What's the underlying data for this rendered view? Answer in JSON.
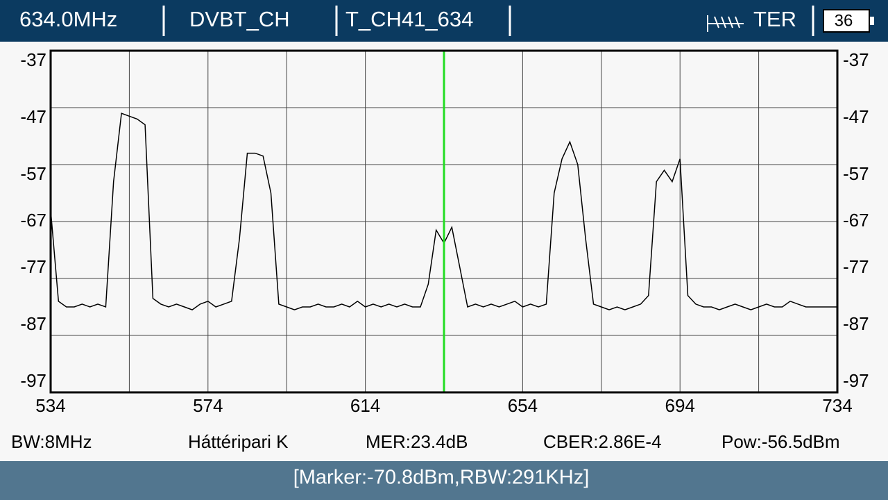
{
  "header": {
    "frequency": "634.0MHz",
    "mode": "DVBT_CH",
    "channel": "T_CH41_634",
    "band": "TER",
    "battery": "36"
  },
  "chart_data": {
    "type": "line",
    "x": [
      534,
      536,
      538,
      540,
      542,
      544,
      546,
      548,
      550,
      552,
      554,
      556,
      558,
      560,
      562,
      564,
      566,
      568,
      570,
      572,
      574,
      576,
      578,
      580,
      582,
      584,
      586,
      588,
      590,
      592,
      594,
      596,
      598,
      600,
      602,
      604,
      606,
      608,
      610,
      612,
      614,
      616,
      618,
      620,
      622,
      624,
      626,
      628,
      630,
      632,
      634,
      636,
      638,
      640,
      642,
      644,
      646,
      648,
      650,
      652,
      654,
      656,
      658,
      660,
      662,
      664,
      666,
      668,
      670,
      672,
      674,
      676,
      678,
      680,
      682,
      684,
      686,
      688,
      690,
      692,
      694,
      696,
      698,
      700,
      702,
      704,
      706,
      708,
      710,
      712,
      714,
      716,
      718,
      720,
      722,
      724,
      726,
      728,
      730,
      732,
      734
    ],
    "series": [
      {
        "color": "#000000",
        "values": [
          -65,
          -81,
          -82,
          -82,
          -81.5,
          -82,
          -81.5,
          -82,
          -60,
          -48,
          -48.5,
          -49,
          -50,
          -80.5,
          -81.5,
          -82,
          -81.5,
          -82,
          -82.5,
          -81.5,
          -81,
          -82,
          -81.5,
          -81,
          -70,
          -55,
          -55,
          -55.5,
          -62,
          -81.5,
          -82,
          -82.5,
          -82,
          -82,
          -81.5,
          -82,
          -82,
          -81.5,
          -82,
          -81,
          -82,
          -81.5,
          -82,
          -81.5,
          -82,
          -81.5,
          -82,
          -82,
          -78,
          -68.5,
          -70.8,
          -68,
          -75,
          -82,
          -81.5,
          -82,
          -81.5,
          -82,
          -81.5,
          -81,
          -82,
          -81.5,
          -82,
          -81.5,
          -62,
          -56,
          -53,
          -57,
          -70,
          -81.5,
          -82,
          -82.5,
          -82,
          -82.5,
          -82,
          -81.5,
          -80,
          -60,
          -58,
          -60,
          -56,
          -80,
          -81.5,
          -82,
          -82,
          -82.5,
          -82,
          -81.5,
          -82,
          -82.5,
          -82,
          -81.5,
          -82,
          -82,
          -81,
          -81.5,
          -82,
          -82,
          -82,
          -82,
          -82
        ]
      }
    ],
    "xlim": [
      534,
      734
    ],
    "xticks": [
      534,
      {
        "value": 554,
        "label": null
      },
      574,
      {
        "value": 594,
        "label": null
      },
      614,
      {
        "value": 634,
        "label": null
      },
      654,
      {
        "value": 674,
        "label": null
      },
      694,
      {
        "value": 714,
        "label": null
      },
      734
    ],
    "ylim": [
      -97,
      -37
    ],
    "yticks": [
      -37,
      -47,
      -57,
      -67,
      -77,
      -87,
      -97
    ],
    "grid": true,
    "marker_x": 634,
    "marker_color": "#22dd22"
  },
  "info": {
    "bandwidth": "BW:8MHz",
    "name": "Háttéripari K",
    "mer": "MER:23.4dB",
    "cber": "CBER:2.86E-4",
    "power": "Pow:-56.5dBm"
  },
  "footer": {
    "status": "[Marker:-70.8dBm,RBW:291KHz]"
  }
}
